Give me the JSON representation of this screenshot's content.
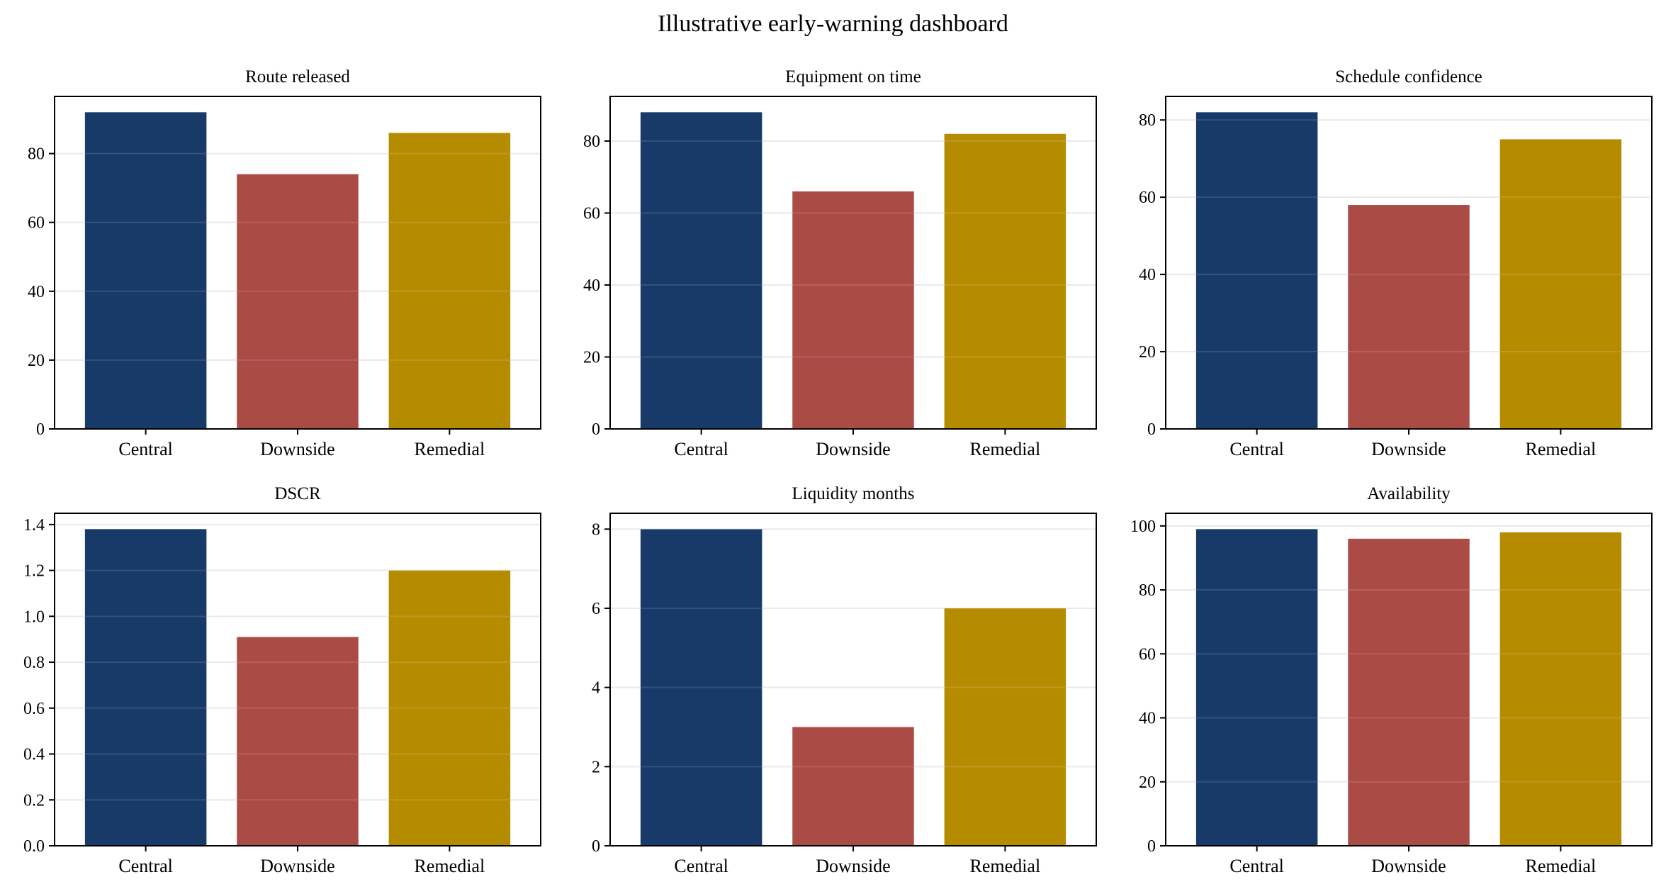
{
  "title": "Illustrative early-warning dashboard",
  "colors": {
    "Central": "#173a68",
    "Downside": "#aa4b45",
    "Remedial": "#b58b00",
    "grid": "#e6e6e6"
  },
  "chart_data": [
    {
      "type": "bar",
      "title": "Route released",
      "categories": [
        "Central",
        "Downside",
        "Remedial"
      ],
      "values": [
        92,
        74,
        86
      ],
      "ylim": [
        0,
        96.6
      ],
      "yticks": [
        0,
        20,
        40,
        60,
        80
      ],
      "yticklabels": [
        "0",
        "20",
        "40",
        "60",
        "80"
      ],
      "grid": true
    },
    {
      "type": "bar",
      "title": "Equipment on time",
      "categories": [
        "Central",
        "Downside",
        "Remedial"
      ],
      "values": [
        88,
        66,
        82
      ],
      "ylim": [
        0,
        92.4
      ],
      "yticks": [
        0,
        20,
        40,
        60,
        80
      ],
      "yticklabels": [
        "0",
        "20",
        "40",
        "60",
        "80"
      ],
      "grid": true
    },
    {
      "type": "bar",
      "title": "Schedule confidence",
      "categories": [
        "Central",
        "Downside",
        "Remedial"
      ],
      "values": [
        82,
        58,
        75
      ],
      "ylim": [
        0,
        86.1
      ],
      "yticks": [
        0,
        20,
        40,
        60,
        80
      ],
      "yticklabels": [
        "0",
        "20",
        "40",
        "60",
        "80"
      ],
      "grid": true
    },
    {
      "type": "bar",
      "title": "DSCR",
      "categories": [
        "Central",
        "Downside",
        "Remedial"
      ],
      "values": [
        1.38,
        0.91,
        1.2
      ],
      "ylim": [
        0,
        1.449
      ],
      "yticks": [
        0,
        0.2,
        0.4,
        0.6,
        0.8,
        1.0,
        1.2,
        1.4
      ],
      "yticklabels": [
        "0.0",
        "0.2",
        "0.4",
        "0.6",
        "0.8",
        "1.0",
        "1.2",
        "1.4"
      ],
      "grid": true
    },
    {
      "type": "bar",
      "title": "Liquidity months",
      "categories": [
        "Central",
        "Downside",
        "Remedial"
      ],
      "values": [
        8,
        3,
        6
      ],
      "ylim": [
        0,
        8.4
      ],
      "yticks": [
        0,
        2,
        4,
        6,
        8
      ],
      "yticklabels": [
        "0",
        "2",
        "4",
        "6",
        "8"
      ],
      "grid": true
    },
    {
      "type": "bar",
      "title": "Availability",
      "categories": [
        "Central",
        "Downside",
        "Remedial"
      ],
      "values": [
        99,
        96,
        98
      ],
      "ylim": [
        0,
        103.95
      ],
      "yticks": [
        0,
        20,
        40,
        60,
        80,
        100
      ],
      "yticklabels": [
        "0",
        "20",
        "40",
        "60",
        "80",
        "100"
      ],
      "grid": true
    }
  ]
}
